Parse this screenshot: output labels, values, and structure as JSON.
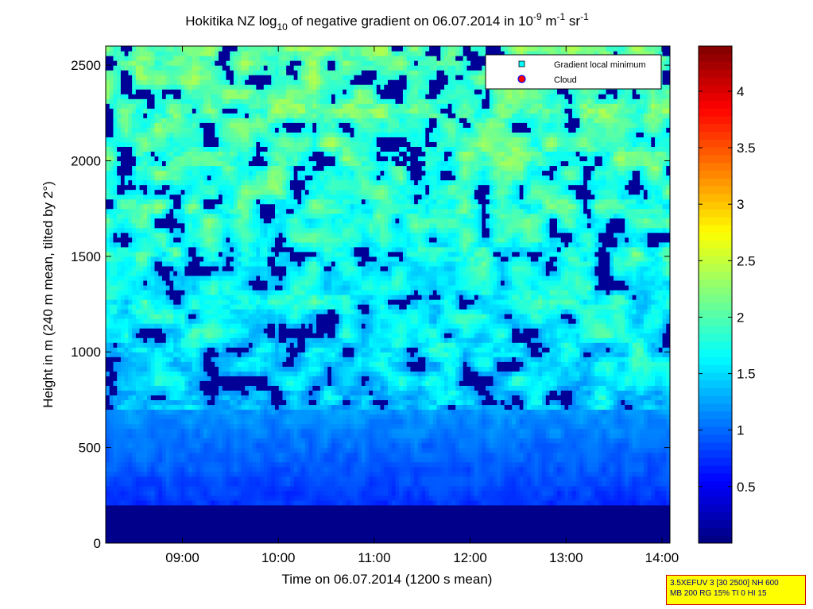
{
  "chart_data": {
    "type": "heatmap",
    "title": {
      "prefix": "Hokitika NZ log",
      "sub": "10",
      "middle": " of negative gradient on 06.07.2014 in 10",
      "exp1": "-9",
      "unit_m": " m",
      "exp2": "-1",
      "unit_sr": " sr",
      "exp3": "-1"
    },
    "xlabel": "Time on 06.07.2014 (1200 s mean)",
    "ylabel": "Height in m (240 m mean, tilted by 2°)",
    "x_range": [
      "08:12",
      "14:05"
    ],
    "xticks": [
      "09:00",
      "10:00",
      "11:00",
      "12:00",
      "13:00",
      "14:00"
    ],
    "y_range": [
      0,
      2600
    ],
    "yticks": [
      "0",
      "500",
      "1000",
      "1500",
      "2000",
      "2500"
    ],
    "colorbar": {
      "range": [
        0,
        4.4
      ],
      "ticks": [
        "0.5",
        "1",
        "1.5",
        "2",
        "2.5",
        "3",
        "3.5",
        "4"
      ],
      "colormap": "jet"
    },
    "legend": {
      "position": "top-right",
      "entries": [
        {
          "label": "Gradient local minimum",
          "marker": "square",
          "color": "#00ffff"
        },
        {
          "label": "Cloud",
          "marker": "circle",
          "color": "#ff0000"
        }
      ]
    },
    "field_description": {
      "surface_layer": {
        "height_range": [
          0,
          190
        ],
        "value": 0.05
      },
      "boundary_layer": {
        "height_range": [
          190,
          700
        ],
        "value_range": [
          0.5,
          1.2
        ]
      },
      "upper_layer": {
        "height_range": [
          700,
          2600
        ],
        "value_range": [
          0.1,
          2.4
        ]
      }
    }
  },
  "infobox": {
    "line1": "3.5XEFUV 3 [30 2500] NH 600",
    "line2": "MB 200 RG 15% TI 0 HI 15"
  }
}
